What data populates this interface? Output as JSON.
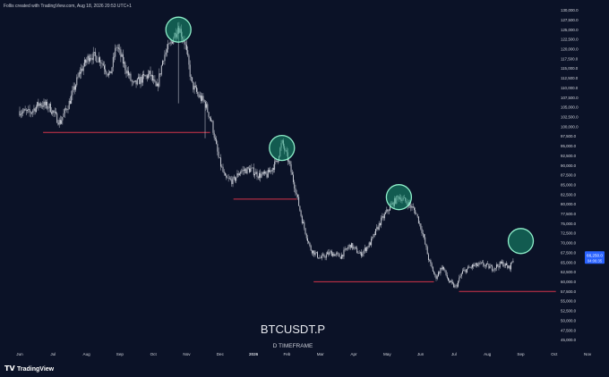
{
  "header": {
    "credit": "Follis created with TradingView.com, Aug 18, 2026 20:53 UTC+1"
  },
  "footer": {
    "brand": "TradingView"
  },
  "watermark": {
    "symbol": "BTCUSDT.P",
    "timeframe": "D TIMEFRAME"
  },
  "price_badges": {
    "last": "66,250.0",
    "countdown": "04:06:35"
  },
  "colors": {
    "background": "#0b1227",
    "candles": "#d4d7e0",
    "support_lines": "#d5344a",
    "highlight_fill": "#19a37a",
    "highlight_stroke": "#8ff0cb",
    "price_badge": "#2962ff",
    "axis_text": "#d1d4dc"
  },
  "chart_data": {
    "type": "line",
    "series_style": "daily candles (white/grey)",
    "x_ticks": [
      "Jun",
      "Jul",
      "Aug",
      "Sep",
      "Oct",
      "Nov",
      "Dec",
      "2026",
      "Feb",
      "Mar",
      "Apr",
      "May",
      "Jun",
      "Jul",
      "Aug",
      "Sep",
      "Oct",
      "Nov"
    ],
    "y_ticks": [
      "130,000.0",
      "127,500.0",
      "125,000.0",
      "122,500.0",
      "120,000.0",
      "117,500.0",
      "115,000.0",
      "112,500.0",
      "110,000.0",
      "107,500.0",
      "105,000.0",
      "102,500.0",
      "100,000.0",
      "97,500.0",
      "95,000.0",
      "92,500.0",
      "90,000.0",
      "87,500.0",
      "85,000.0",
      "82,500.0",
      "80,000.0",
      "77,500.0",
      "75,000.0",
      "72,500.0",
      "70,000.0",
      "67,500.0",
      "65,000.0",
      "62,500.0",
      "60,000.0",
      "57,500.0",
      "55,000.0",
      "52,500.0",
      "50,000.0",
      "47,500.0",
      "45,000.0"
    ],
    "y_range": [
      43000,
      131000
    ],
    "x_range_months": [
      0,
      18
    ],
    "price_path": [
      [
        0.0,
        104000
      ],
      [
        0.3,
        103500
      ],
      [
        0.6,
        106000
      ],
      [
        0.9,
        105000
      ],
      [
        1.2,
        101000
      ],
      [
        1.5,
        106500
      ],
      [
        1.8,
        114000
      ],
      [
        2.1,
        118500
      ],
      [
        2.4,
        117500
      ],
      [
        2.7,
        113000
      ],
      [
        2.9,
        121000
      ],
      [
        3.1,
        116500
      ],
      [
        3.4,
        110500
      ],
      [
        3.6,
        112000
      ],
      [
        3.9,
        113500
      ],
      [
        4.1,
        109500
      ],
      [
        4.3,
        118000
      ],
      [
        4.5,
        121000
      ],
      [
        4.75,
        126000
      ],
      [
        4.95,
        121500
      ],
      [
        5.15,
        111000
      ],
      [
        5.35,
        108000
      ],
      [
        5.55,
        106000
      ],
      [
        5.75,
        101000
      ],
      [
        5.95,
        92000
      ],
      [
        6.15,
        86500
      ],
      [
        6.4,
        86000
      ],
      [
        6.6,
        88500
      ],
      [
        6.9,
        89000
      ],
      [
        7.15,
        87500
      ],
      [
        7.4,
        87500
      ],
      [
        7.7,
        91000
      ],
      [
        7.85,
        96000
      ],
      [
        8.05,
        91000
      ],
      [
        8.25,
        84000
      ],
      [
        8.45,
        76000
      ],
      [
        8.7,
        68500
      ],
      [
        9.0,
        66000
      ],
      [
        9.3,
        67500
      ],
      [
        9.6,
        66500
      ],
      [
        9.9,
        69500
      ],
      [
        10.2,
        67000
      ],
      [
        10.5,
        70000
      ],
      [
        10.8,
        75500
      ],
      [
        11.1,
        79500
      ],
      [
        11.35,
        82000
      ],
      [
        11.6,
        80500
      ],
      [
        11.85,
        78000
      ],
      [
        12.05,
        73000
      ],
      [
        12.25,
        65500
      ],
      [
        12.45,
        61000
      ],
      [
        12.65,
        64000
      ],
      [
        12.85,
        60000
      ],
      [
        13.05,
        58500
      ],
      [
        13.25,
        62500
      ],
      [
        13.55,
        64000
      ],
      [
        13.85,
        64500
      ],
      [
        14.15,
        63500
      ],
      [
        14.45,
        64800
      ],
      [
        14.65,
        63500
      ],
      [
        14.8,
        66250
      ]
    ],
    "support_levels": [
      {
        "price": 98500,
        "from": 0.7,
        "to": 5.7
      },
      {
        "price": 81300,
        "from": 6.4,
        "to": 8.3
      },
      {
        "price": 60000,
        "from": 8.8,
        "to": 12.4
      },
      {
        "price": 57500,
        "from": 13.15,
        "to": 16.05
      }
    ],
    "highlighted_peaks": [
      {
        "month": 4.75,
        "price": 125000
      },
      {
        "month": 7.85,
        "price": 94500
      },
      {
        "month": 11.35,
        "price": 81800
      },
      {
        "month": 15.0,
        "price": 70500
      }
    ],
    "last_price": 66250
  }
}
